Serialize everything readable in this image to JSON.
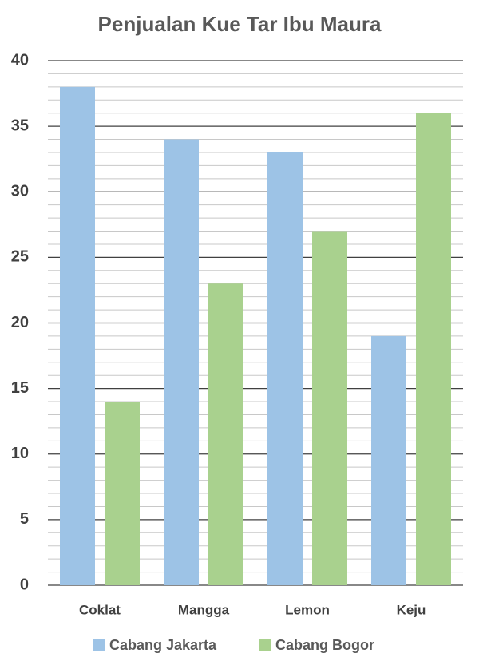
{
  "chart_data": {
    "type": "bar",
    "title": "Penjualan Kue Tar Ibu Maura",
    "categories": [
      "Coklat",
      "Mangga",
      "Lemon",
      "Keju"
    ],
    "series": [
      {
        "name": "Cabang Jakarta",
        "color": "#9dc3e6",
        "values": [
          38,
          34,
          33,
          19
        ]
      },
      {
        "name": "Cabang Bogor",
        "color": "#a9d18e",
        "values": [
          14,
          23,
          27,
          36
        ]
      }
    ],
    "ylim": [
      0,
      40
    ],
    "yticks": [
      0,
      5,
      10,
      15,
      20,
      25,
      30,
      35,
      40
    ],
    "minor_yticks": [
      1,
      2,
      3,
      4,
      6,
      7,
      8,
      9,
      11,
      12,
      13,
      14,
      16,
      17,
      18,
      19,
      21,
      22,
      23,
      24,
      26,
      27,
      28,
      29,
      31,
      32,
      33,
      34,
      36,
      37,
      38,
      39
    ],
    "grid": true,
    "legend": "bottom"
  }
}
